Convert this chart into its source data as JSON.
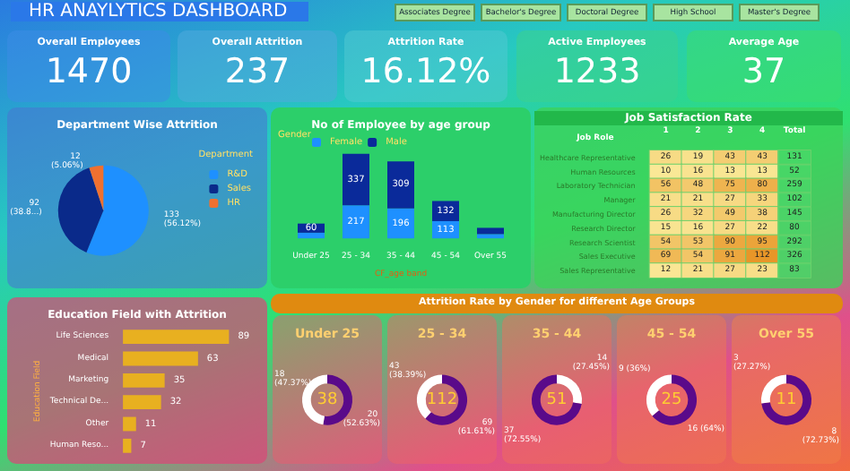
{
  "chart_data": [
    {
      "type": "other",
      "title": "HR ANAYLYTICS DASHBOARD",
      "annotations": [
        "Associates Degree",
        "Bachelor's Degree",
        "Doctoral Degree",
        "High School",
        "Master's Degree"
      ]
    },
    {
      "type": "other",
      "title": "Overall Employees",
      "annotations": [
        "1470"
      ]
    },
    {
      "type": "other",
      "title": "Overall Attrition",
      "annotations": [
        "237"
      ]
    },
    {
      "type": "other",
      "title": "Attrition Rate",
      "annotations": [
        "16.12%"
      ]
    },
    {
      "type": "other",
      "title": "Active Employees",
      "annotations": [
        "1233"
      ]
    },
    {
      "type": "other",
      "title": "Average Age",
      "annotations": [
        "37"
      ]
    },
    {
      "type": "pie",
      "title": "Department Wise Attrition",
      "categories": [
        "R&D",
        "Sales",
        "HR"
      ],
      "values": [
        133,
        92,
        12
      ],
      "colors": [
        "#1e90ff",
        "#0a2a8a",
        "#f07030"
      ],
      "value_labels": [
        "133 (56.12%)",
        "92 (38.8...)",
        "12 (5.06%)"
      ],
      "legend": "right",
      "legend_title": "Department"
    },
    {
      "type": "bar",
      "title": "No of Employee by age group",
      "categories": [
        "Under 25",
        "25 - 34",
        "35 - 44",
        "45 - 54",
        "Over 55"
      ],
      "xlabel": "CF_age band",
      "stacked": true,
      "legend": "top left",
      "legend_title": "Gender",
      "series": [
        {
          "name": "Female",
          "color": "#1e90ff",
          "values": [
            37,
            217,
            196,
            113,
            28
          ],
          "value_labels": [
            null,
            "217",
            "196",
            "113",
            null
          ]
        },
        {
          "name": "Male",
          "color": "#0a2a9a",
          "values": [
            60,
            337,
            309,
            132,
            41
          ],
          "value_labels": [
            "60",
            "337",
            "309",
            "132",
            null
          ]
        }
      ]
    },
    {
      "type": "heatmap",
      "title": "Job Satisfaction Rate",
      "ylabel": "Job Role",
      "categories": [
        "1",
        "2",
        "3",
        "4",
        "Total"
      ],
      "y_categories": [
        "Healthcare Representative",
        "Human Resources",
        "Laboratory Technician",
        "Manager",
        "Manufacturing Director",
        "Research Director",
        "Research Scientist",
        "Sales Executive",
        "Sales Representative"
      ],
      "cells": [
        [
          26,
          19,
          43,
          43,
          131
        ],
        [
          10,
          16,
          13,
          13,
          52
        ],
        [
          56,
          48,
          75,
          80,
          259
        ],
        [
          21,
          21,
          27,
          33,
          102
        ],
        [
          26,
          32,
          49,
          38,
          145
        ],
        [
          15,
          16,
          27,
          22,
          80
        ],
        [
          54,
          53,
          90,
          95,
          292
        ],
        [
          69,
          54,
          91,
          112,
          326
        ],
        [
          12,
          21,
          27,
          23,
          83
        ]
      ],
      "data_labels": true
    },
    {
      "type": "bar",
      "orientation": "horizontal",
      "title": "Education Field with Attrition",
      "ylabel": "Education Field",
      "categories": [
        "Life Sciences",
        "Medical",
        "Marketing",
        "Technical De...",
        "Other",
        "Human Reso..."
      ],
      "values": [
        89,
        63,
        35,
        32,
        11,
        7
      ],
      "color": "#e8b020",
      "data_labels": true
    },
    {
      "type": "other",
      "title": "Attrition Rate by Gender for different Age Groups"
    },
    {
      "type": "donut",
      "title": "Under 25",
      "categories": [
        null,
        null
      ],
      "values": [
        20,
        18
      ],
      "colors": [
        "#5a0a8a",
        "#ffffff"
      ],
      "value_labels": [
        "20 (52.63%)",
        "18 (47.37%)"
      ],
      "annotations": [
        "38"
      ]
    },
    {
      "type": "donut",
      "title": "25 - 34",
      "categories": [
        null,
        null
      ],
      "values": [
        69,
        43
      ],
      "colors": [
        "#5a0a8a",
        "#ffffff"
      ],
      "value_labels": [
        "69 (61.61%)",
        "43 (38.39%)"
      ],
      "annotations": [
        "112"
      ]
    },
    {
      "type": "donut",
      "title": "35 - 44",
      "categories": [
        null,
        null
      ],
      "values": [
        14,
        37
      ],
      "colors": [
        "#ffffff",
        "#5a0a8a"
      ],
      "value_labels": [
        "14 (27.45%)",
        "37 (72.55%)"
      ],
      "annotations": [
        "51"
      ]
    },
    {
      "type": "donut",
      "title": "45 - 54",
      "categories": [
        null,
        null
      ],
      "values": [
        16,
        9
      ],
      "colors": [
        "#5a0a8a",
        "#ffffff"
      ],
      "value_labels": [
        "16 (64%)",
        "9 (36%)"
      ],
      "annotations": [
        "25"
      ]
    },
    {
      "type": "donut",
      "title": "Over 55",
      "categories": [
        null,
        null
      ],
      "values": [
        8,
        3
      ],
      "colors": [
        "#5a0a8a",
        "#ffffff"
      ],
      "value_labels": [
        "8 (72.73%)",
        "3 (27.27%)"
      ],
      "annotations": [
        "11"
      ]
    }
  ]
}
